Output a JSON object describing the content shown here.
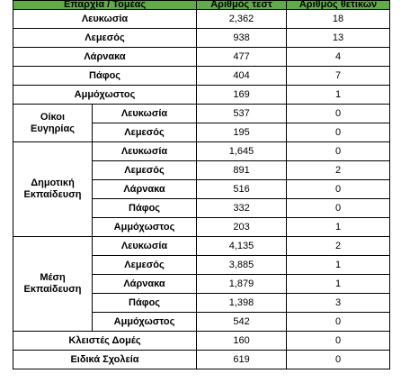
{
  "table": {
    "headers": [
      "Επαρχία / Τομέας",
      "Αριθμός τεστ",
      "Αριθμός θετικών"
    ],
    "rows": [
      {
        "label": "Λευκωσία",
        "tests": "2,362",
        "positives": "18"
      },
      {
        "label": "Λεμεσός",
        "tests": "938",
        "positives": "13"
      },
      {
        "label": "Λάρνακα",
        "tests": "477",
        "positives": "4"
      },
      {
        "label": "Πάφος",
        "tests": "404",
        "positives": "7"
      },
      {
        "label": "Αμμόχωστος",
        "tests": "169",
        "positives": "1"
      }
    ],
    "groups": [
      {
        "name_line1": "Οίκοι",
        "name_line2": "Ευγηρίας",
        "rows": [
          {
            "label": "Λευκωσία",
            "tests": "537",
            "positives": "0"
          },
          {
            "label": "Λεμεσός",
            "tests": "195",
            "positives": "0"
          }
        ]
      },
      {
        "name_line1": "Δημοτική",
        "name_line2": "Εκπαίδευση",
        "rows": [
          {
            "label": "Λευκωσία",
            "tests": "1,645",
            "positives": "0"
          },
          {
            "label": "Λεμεσός",
            "tests": "891",
            "positives": "2"
          },
          {
            "label": "Λάρνακα",
            "tests": "516",
            "positives": "0"
          },
          {
            "label": "Πάφος",
            "tests": "332",
            "positives": "0"
          },
          {
            "label": "Αμμόχωστος",
            "tests": "203",
            "positives": "1"
          }
        ]
      },
      {
        "name_line1": "Μέση",
        "name_line2": "Εκπαίδευση",
        "rows": [
          {
            "label": "Λευκωσία",
            "tests": "4,135",
            "positives": "2"
          },
          {
            "label": "Λεμεσός",
            "tests": "3,885",
            "positives": "1"
          },
          {
            "label": "Λάρνακα",
            "tests": "1,879",
            "positives": "1"
          },
          {
            "label": "Πάφος",
            "tests": "1,398",
            "positives": "3"
          },
          {
            "label": "Αμμόχωστος",
            "tests": "542",
            "positives": "0"
          }
        ]
      }
    ],
    "footer_rows": [
      {
        "label": "Κλειστές Δομές",
        "tests": "160",
        "positives": "0"
      },
      {
        "label": "Ειδικά Σχολεία",
        "tests": "619",
        "positives": "0"
      }
    ],
    "header_color": "#5fae45"
  }
}
